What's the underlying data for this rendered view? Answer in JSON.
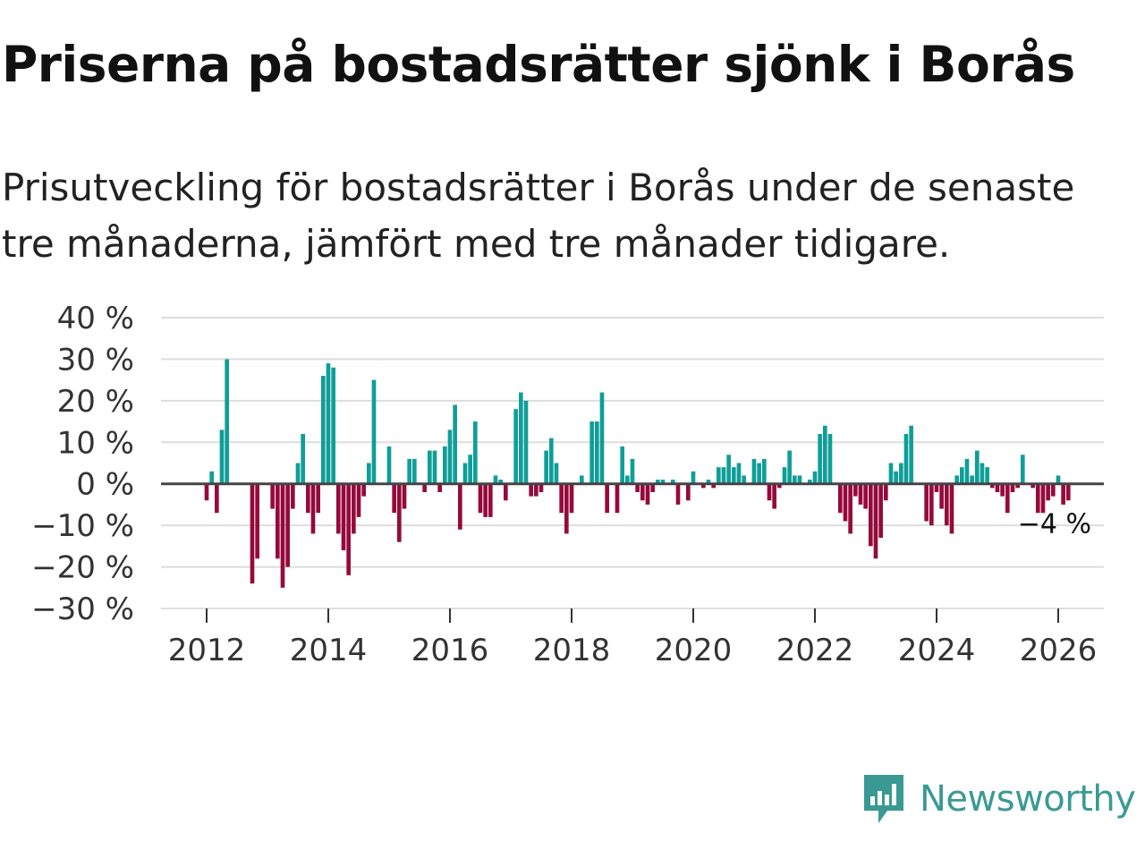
{
  "header": {
    "title": "Priserna på bostadsrätter sjönk i Borås",
    "subtitle": "Prisutveckling för bostadsrätter i Borås under de senaste tre månaderna, jämfört med tre månader tidigare."
  },
  "brand": {
    "name": "Newsworthy",
    "color": "#3a9a93"
  },
  "colors": {
    "positive": "#0f9e98",
    "negative": "#950a3b",
    "grid": "#dddddd",
    "baseline": "#444444"
  },
  "chart_data": {
    "type": "bar",
    "title": "Priserna på bostadsrätter sjönk i Borås",
    "xlabel": "",
    "ylabel": "",
    "ylim": [
      -30,
      40
    ],
    "xlim": [
      2011.25,
      2026.75
    ],
    "y_ticks": [
      40,
      30,
      20,
      10,
      0,
      -10,
      -20,
      -30
    ],
    "y_tick_labels": [
      "40 %",
      "30 %",
      "20 %",
      "10 %",
      "0 %",
      "−10 %",
      "−20 %",
      "−30 %"
    ],
    "x_ticks": [
      2012,
      2014,
      2016,
      2018,
      2020,
      2022,
      2024,
      2026
    ],
    "x_tick_labels": [
      "2012",
      "2014",
      "2016",
      "2018",
      "2020",
      "2022",
      "2024",
      "2026"
    ],
    "x_start": 2012.0,
    "x_step": 0.08333,
    "values": [
      -4,
      3,
      -7,
      13,
      30,
      0,
      0,
      0,
      0,
      -24,
      -18,
      0,
      0,
      -6,
      -18,
      -25,
      -20,
      -6,
      5,
      12,
      -7,
      -12,
      -7,
      26,
      29,
      28,
      -12,
      -16,
      -22,
      -12,
      -8,
      -3,
      5,
      25,
      0,
      0,
      9,
      -7,
      -14,
      -6,
      6,
      6,
      0,
      -2,
      8,
      8,
      -2,
      9,
      13,
      19,
      -11,
      5,
      7,
      15,
      -7,
      -8,
      -8,
      2,
      1,
      -4,
      0,
      18,
      22,
      20,
      -3,
      -3,
      -2,
      8,
      11,
      5,
      -7,
      -12,
      -7,
      0,
      2,
      0,
      15,
      15,
      22,
      -7,
      0,
      -7,
      9,
      2,
      6,
      -2,
      -4,
      -5,
      -2,
      1,
      1,
      0,
      1,
      -5,
      0,
      -4,
      3,
      0,
      -1,
      1,
      -1,
      4,
      4,
      7,
      4,
      5,
      2,
      0,
      6,
      5,
      6,
      -4,
      -6,
      -1,
      4,
      8,
      2,
      2,
      0,
      1,
      3,
      12,
      14,
      12,
      0,
      -7,
      -9,
      -12,
      -3,
      -5,
      -6,
      -15,
      -18,
      -13,
      -4,
      5,
      3,
      5,
      12,
      14,
      0,
      0,
      -9,
      -10,
      -2,
      -6,
      -10,
      -12,
      2,
      4,
      6,
      2,
      8,
      5,
      4,
      -1,
      -2,
      -3,
      -7,
      -2,
      -1,
      7,
      0,
      -1,
      -7,
      -7,
      -4,
      -3,
      2,
      -5,
      -4
    ],
    "end_label": "−4 %"
  }
}
